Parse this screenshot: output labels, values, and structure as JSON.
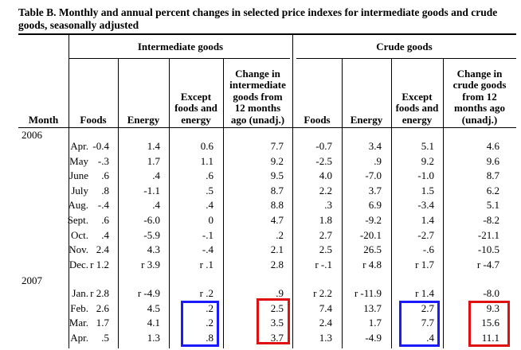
{
  "title": "Table B.  Monthly and annual percent changes in selected price indexes for intermediate goods and crude goods, seasonally adjusted",
  "groups": {
    "intermediate": "Intermediate goods",
    "crude": "Crude goods"
  },
  "columns": {
    "month": "Month",
    "int_foods": "Foods",
    "int_energy": "Energy",
    "int_except": "Except\nfoods and\nenergy",
    "int_change": "Change in\nintermediate\ngoods from\n12 months\nago (unadj.)",
    "cr_foods": "Foods",
    "cr_energy": "Energy",
    "cr_except": "Except\nfoods and\nenergy",
    "cr_change": "Change in\ncrude goods\nfrom 12\nmonths ago\n(unadj.)"
  },
  "years": [
    "2006",
    "2007"
  ],
  "rows_2006": [
    {
      "month": "Apr.",
      "v": [
        "-0.4",
        "1.4",
        "0.6",
        "7.7",
        "-0.7",
        "3.4",
        "5.1",
        "4.6"
      ]
    },
    {
      "month": "May",
      "v": [
        "-.3",
        "1.7",
        "1.1",
        "9.2",
        "-2.5",
        ".9",
        "9.2",
        "9.6"
      ]
    },
    {
      "month": "June",
      "v": [
        ".6",
        ".4",
        ".6",
        "9.5",
        "4.0",
        "-7.0",
        "-1.0",
        "8.7"
      ]
    },
    {
      "month": "July",
      "v": [
        ".8",
        "-1.1",
        ".5",
        "8.7",
        "2.2",
        "3.7",
        "1.5",
        "6.2"
      ]
    },
    {
      "month": "Aug.",
      "v": [
        "-.4",
        ".4",
        ".4",
        "8.8",
        ".3",
        "6.9",
        "-3.4",
        "5.1"
      ]
    },
    {
      "month": "Sept.",
      "v": [
        ".6",
        "-6.0",
        "0",
        "4.7",
        "1.8",
        "-9.2",
        "1.4",
        "-8.2"
      ]
    },
    {
      "month": "Oct.",
      "v": [
        ".4",
        "-5.9",
        "-.1",
        ".2",
        "2.7",
        "-20.1",
        "-2.7",
        "-21.1"
      ]
    },
    {
      "month": "Nov.",
      "v": [
        "2.4",
        "4.3",
        "-.4",
        "2.1",
        "2.5",
        "26.5",
        "-.6",
        "-10.5"
      ]
    },
    {
      "month": "Dec.",
      "v": [
        "r 1.2",
        "r 3.9",
        "r .1",
        "2.8",
        "r -.1",
        "r 4.8",
        "r 1.7",
        "r -4.7"
      ]
    }
  ],
  "rows_2007": [
    {
      "month": "Jan.",
      "v": [
        "r 2.8",
        "r -4.9",
        "r .2",
        ".9",
        "r 2.2",
        "r -11.9",
        "r 1.4",
        "-8.0"
      ]
    },
    {
      "month": "Feb.",
      "v": [
        "2.6",
        "4.5",
        ".2",
        "2.5",
        "7.4",
        "13.7",
        "2.7",
        "9.3"
      ]
    },
    {
      "month": "Mar.",
      "v": [
        "1.7",
        "4.1",
        ".2",
        "3.5",
        "2.4",
        "1.7",
        "7.7",
        "15.6"
      ]
    },
    {
      "month": "Apr.",
      "v": [
        ".5",
        "1.3",
        ".8",
        "3.7",
        "1.3",
        "-4.9",
        ".4",
        "11.1"
      ]
    }
  ],
  "highlight_colors": {
    "blue": "#1a1aff",
    "red": "#e01010"
  }
}
